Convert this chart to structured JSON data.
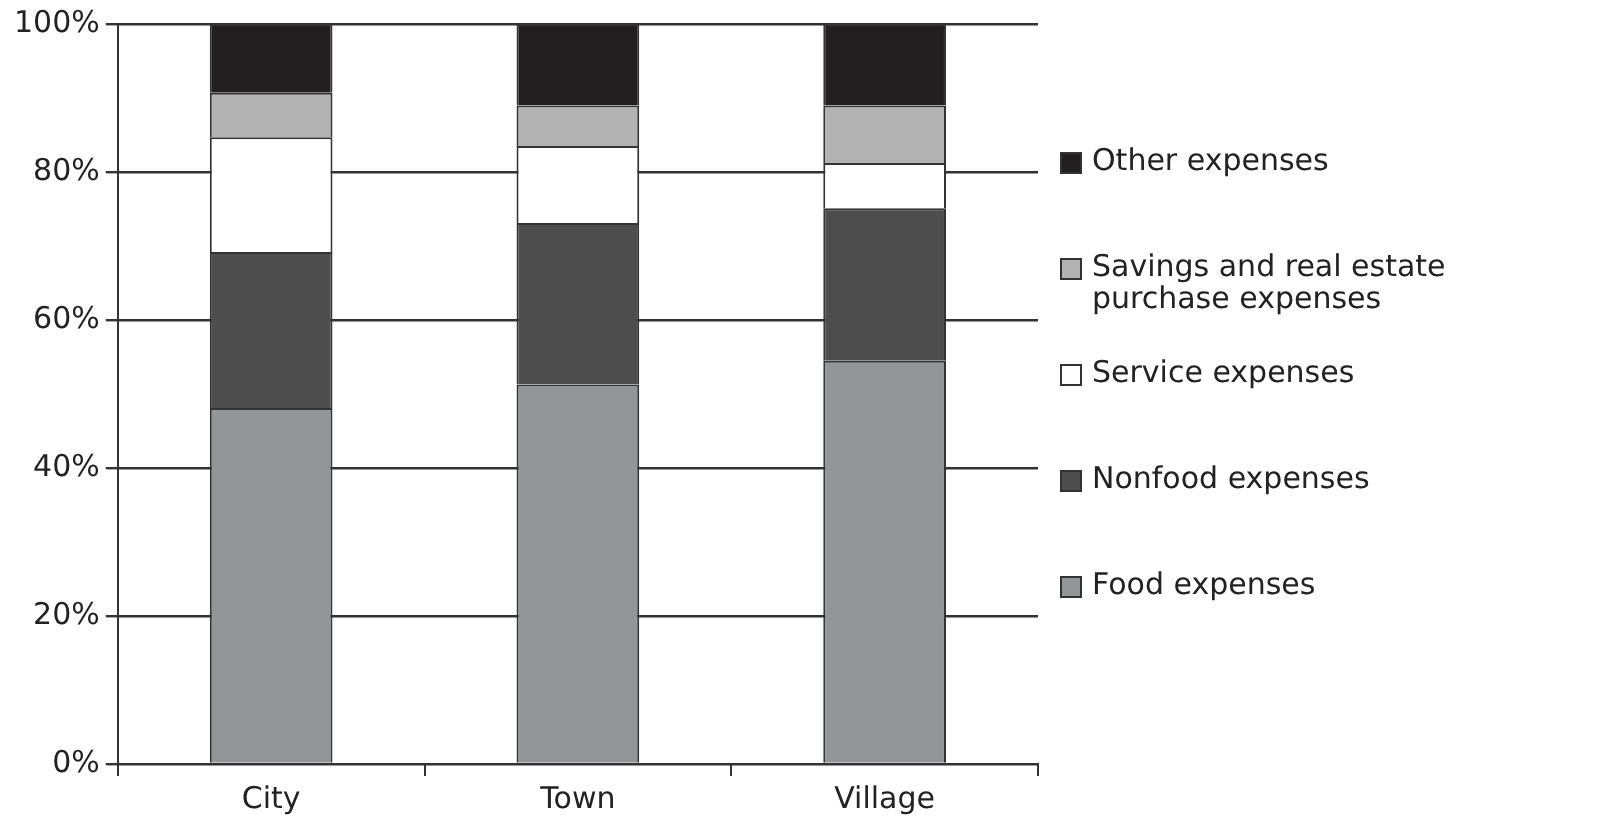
{
  "chart_data": {
    "type": "bar",
    "stacked": true,
    "categories": [
      "City",
      "Town",
      "Village"
    ],
    "series": [
      {
        "name": "Food expenses",
        "color": "#939598",
        "values": [
          48.1,
          51.3,
          54.5
        ]
      },
      {
        "name": "Nonfood expenses",
        "color": "#4d4d4d",
        "values": [
          21.1,
          21.8,
          20.6
        ]
      },
      {
        "name": "Service expenses",
        "color": "#ffffff",
        "values": [
          15.5,
          10.4,
          6.1
        ]
      },
      {
        "name": "Savings and real estate purchase expenses",
        "color": "#b3b3b3",
        "values": [
          6.0,
          5.5,
          7.8
        ]
      },
      {
        "name": "Other expenses",
        "color": "#231f20",
        "values": [
          9.3,
          11.0,
          11.0
        ]
      }
    ],
    "ylim": [
      0,
      100
    ],
    "yticks": [
      {
        "value": 0,
        "label": "0%"
      },
      {
        "value": 20,
        "label": "20%"
      },
      {
        "value": 40,
        "label": "40%"
      },
      {
        "value": 60,
        "label": "60%"
      },
      {
        "value": 80,
        "label": "80%"
      },
      {
        "value": 100,
        "label": "100%"
      }
    ],
    "grid": "y",
    "legend": "right"
  }
}
